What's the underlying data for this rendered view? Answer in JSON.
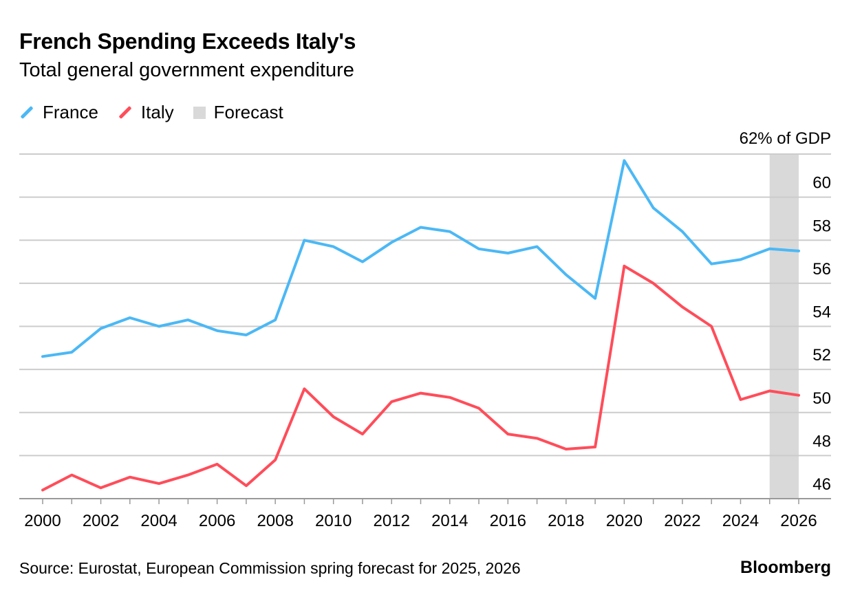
{
  "chart_data": {
    "type": "line",
    "title": "French Spending Exceeds Italy's",
    "subtitle": "Total general government expenditure",
    "ylabel": "% of GDP",
    "top_tick_label": "62% of GDP",
    "ylim": [
      46,
      62
    ],
    "yticks": [
      46,
      48,
      50,
      52,
      54,
      56,
      58,
      60
    ],
    "xlim": [
      2000,
      2026
    ],
    "xticks": [
      2000,
      2002,
      2004,
      2006,
      2008,
      2010,
      2012,
      2014,
      2016,
      2018,
      2020,
      2022,
      2024,
      2026
    ],
    "x": [
      2000,
      2001,
      2002,
      2003,
      2004,
      2005,
      2006,
      2007,
      2008,
      2009,
      2010,
      2011,
      2012,
      2013,
      2014,
      2015,
      2016,
      2017,
      2018,
      2019,
      2020,
      2021,
      2022,
      2023,
      2024,
      2025,
      2026
    ],
    "series": [
      {
        "name": "France",
        "color": "#4bb8f5",
        "values": [
          52.6,
          52.8,
          53.9,
          54.4,
          54.0,
          54.3,
          53.8,
          53.6,
          54.3,
          58.0,
          57.7,
          57.0,
          57.9,
          58.6,
          58.4,
          57.6,
          57.4,
          57.7,
          56.4,
          55.3,
          61.7,
          59.5,
          58.4,
          56.9,
          57.1,
          57.6,
          57.5
        ]
      },
      {
        "name": "Italy",
        "color": "#ff4d5a",
        "values": [
          46.4,
          47.1,
          46.5,
          47.0,
          46.7,
          47.1,
          47.6,
          46.6,
          47.8,
          51.1,
          49.8,
          49.0,
          50.5,
          50.9,
          50.7,
          50.2,
          49.0,
          48.8,
          48.3,
          48.4,
          56.8,
          56.0,
          54.9,
          54.0,
          50.6,
          51.0,
          50.8
        ]
      }
    ],
    "forecast": {
      "label": "Forecast",
      "from": 2025,
      "to": 2026,
      "color": "#d9d9d9"
    },
    "legend_position": "top-left",
    "grid": true
  },
  "footer": {
    "source": "Source: Eurostat, European Commission spring forecast for 2025, 2026",
    "brand": "Bloomberg"
  }
}
